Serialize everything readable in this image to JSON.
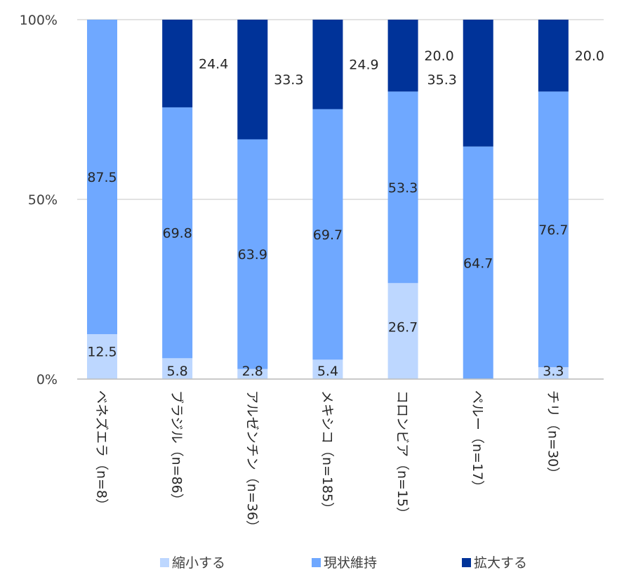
{
  "chart_data": {
    "type": "bar",
    "stacked": true,
    "categories": [
      "ベネズエラ（n=8）",
      "ブラジル（n=86）",
      "アルゼンチン（n=36）",
      "メキシコ（n=185）",
      "コロンビア（n=15）",
      "ペルー（n=17）",
      "チリ（n=30）"
    ],
    "series": [
      {
        "name": "縮小する",
        "color": "#bdd7ff",
        "values": [
          12.5,
          5.8,
          2.8,
          5.4,
          26.7,
          0,
          3.3
        ],
        "labels": [
          "12.5",
          "5.8",
          "2.8",
          "5.4",
          "26.7",
          "",
          "3.3"
        ]
      },
      {
        "name": "現状維持",
        "color": "#6fa8ff",
        "values": [
          87.5,
          69.8,
          63.9,
          69.7,
          53.3,
          64.7,
          76.7
        ],
        "labels": [
          "87.5",
          "69.8",
          "63.9",
          "69.7",
          "53.3",
          "64.7",
          "76.7"
        ]
      },
      {
        "name": "拡大する",
        "color": "#003399",
        "values": [
          0,
          24.4,
          33.3,
          24.9,
          20.0,
          35.3,
          20.0
        ],
        "labels": [
          "",
          "24.4",
          "33.3",
          "24.9",
          "20.0",
          "35.3",
          "20.0"
        ]
      }
    ],
    "yticks": [
      "0%",
      "50%",
      "100%"
    ],
    "ylim": [
      0,
      100
    ],
    "grid": true,
    "legend": "bottom"
  }
}
